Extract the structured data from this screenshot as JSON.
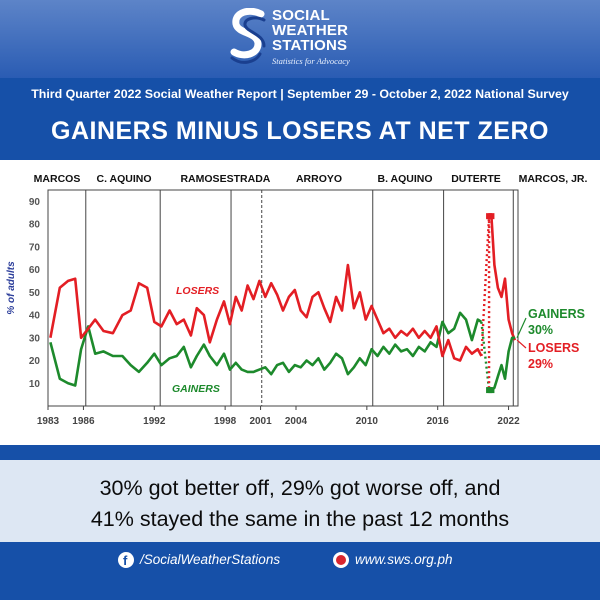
{
  "header": {
    "org_name": [
      "SOCIAL",
      "WEATHER",
      "STATIONS"
    ],
    "tagline": "Statistics for Advocacy",
    "survey_line": "Third Quarter 2022 Social Weather Report  |  September 29 - October 2, 2022 National Survey",
    "headline": "GAINERS MINUS LOSERS AT NET ZERO"
  },
  "summary": {
    "line1": "30% got better off, 29% got worse off, and",
    "line2": "41% stayed the same in the past 12 months"
  },
  "footer": {
    "facebook": "/SocialWeatherStations",
    "website": "www.sws.org.ph"
  },
  "colors": {
    "losers": "#e31e24",
    "gainers": "#1d8a2c",
    "brand_blue": "#1650a8",
    "ylabel": "#2b3d9a"
  },
  "icons": [
    "logo-swirl-icon",
    "facebook-icon",
    "globe-icon"
  ],
  "chart_data": {
    "type": "line",
    "title": "",
    "xlabel": "",
    "ylabel": "% of adults",
    "xlim": [
      1983,
      2022.8
    ],
    "ylim": [
      0,
      95
    ],
    "yticks": [
      10,
      20,
      30,
      40,
      50,
      60,
      70,
      80,
      90
    ],
    "xticks": [
      1983,
      1986,
      1992,
      1998,
      2001,
      2004,
      2010,
      2016,
      2022
    ],
    "grid": false,
    "legend": "inline labels",
    "administrations": [
      {
        "label": "MARCOS",
        "start": 1983
      },
      {
        "label": "C. AQUINO",
        "start": 1986.2
      },
      {
        "label": "RAMOS",
        "start": 1992.5
      },
      {
        "label": "ESTRADA",
        "start": 1998.5
      },
      {
        "label": "ARROYO",
        "start": 2001.1
      },
      {
        "label": "B. AQUINO",
        "start": 2010.5
      },
      {
        "label": "DUTERTE",
        "start": 2016.5
      },
      {
        "label": "MARCOS, JR.",
        "start": 2022.4
      }
    ],
    "series": [
      {
        "name": "LOSERS",
        "line_label": "LOSERS",
        "end_label": "LOSERS",
        "end_value_label": "29%",
        "x": [
          1983.2,
          1984,
          1984.7,
          1985.3,
          1985.8,
          1986.4,
          1987,
          1987.7,
          1988.5,
          1989.3,
          1990,
          1990.7,
          1991.4,
          1992,
          1992.6,
          1993.3,
          1993.9,
          1994.5,
          1995.1,
          1995.6,
          1996.2,
          1996.7,
          1997.3,
          1997.9,
          1998.4,
          1998.9,
          1999.4,
          1999.9,
          2000.4,
          2000.9,
          2001.4,
          2001.9,
          2002.4,
          2002.9,
          2003.4,
          2003.9,
          2004.4,
          2004.9,
          2005.4,
          2005.9,
          2006.4,
          2006.9,
          2007.4,
          2007.9,
          2008.4,
          2008.9,
          2009.4,
          2009.9,
          2010.4,
          2010.9,
          2011.4,
          2011.9,
          2012.4,
          2012.9,
          2013.4,
          2013.9,
          2014.4,
          2014.9,
          2015.4,
          2015.9,
          2016.4,
          2016.9,
          2017.4,
          2017.9,
          2018.4,
          2018.9,
          2019.4,
          2019.7
        ],
        "values": [
          30,
          52,
          55,
          56,
          30,
          34,
          38,
          33,
          32,
          40,
          42,
          54,
          52,
          37,
          35,
          42,
          36,
          38,
          31,
          43,
          40,
          28,
          38,
          46,
          36,
          48,
          42,
          53,
          47,
          55,
          48,
          54,
          49,
          42,
          48,
          51,
          42,
          39,
          48,
          50,
          43,
          37,
          48,
          42,
          62,
          43,
          50,
          38,
          44,
          38,
          32,
          34,
          30,
          33,
          31,
          34,
          30,
          33,
          30,
          35,
          22,
          29,
          21,
          20,
          26,
          23,
          25,
          22
        ]
      },
      {
        "name": "GAINERS",
        "line_label": "GAINERS",
        "end_label": "GAINERS",
        "end_value_label": "30%",
        "x": [
          1983.2,
          1984,
          1984.7,
          1985.3,
          1985.8,
          1986.4,
          1987,
          1987.7,
          1988.5,
          1989.3,
          1990,
          1990.7,
          1991.4,
          1992,
          1992.6,
          1993.3,
          1993.9,
          1994.5,
          1995.1,
          1995.6,
          1996.2,
          1996.7,
          1997.3,
          1997.9,
          1998.4,
          1998.9,
          1999.4,
          1999.9,
          2000.4,
          2000.9,
          2001.4,
          2001.9,
          2002.4,
          2002.9,
          2003.4,
          2003.9,
          2004.4,
          2004.9,
          2005.4,
          2005.9,
          2006.4,
          2006.9,
          2007.4,
          2007.9,
          2008.4,
          2008.9,
          2009.4,
          2009.9,
          2010.4,
          2010.9,
          2011.4,
          2011.9,
          2012.4,
          2012.9,
          2013.4,
          2013.9,
          2014.4,
          2014.9,
          2015.4,
          2015.9,
          2016.4,
          2016.9,
          2017.4,
          2017.9,
          2018.4,
          2018.9,
          2019.4,
          2019.7
        ],
        "values": [
          28,
          12,
          10,
          9,
          25,
          35,
          23,
          24,
          22,
          22,
          18,
          15,
          19,
          23,
          18,
          21,
          22,
          26,
          17,
          22,
          27,
          22,
          18,
          23,
          16,
          19,
          16,
          15,
          15,
          16,
          17,
          14,
          18,
          19,
          15,
          18,
          17,
          20,
          18,
          21,
          16,
          19,
          23,
          21,
          14,
          17,
          21,
          18,
          25,
          22,
          26,
          23,
          27,
          24,
          25,
          22,
          26,
          24,
          28,
          26,
          37,
          32,
          34,
          41,
          38,
          29,
          38,
          37
        ]
      }
    ],
    "pandemic_points": {
      "losers": [
        {
          "x": 2020.35,
          "y": 83.5
        },
        {
          "x": 2020.55,
          "y": 83.5
        }
      ],
      "gainers": [
        {
          "x": 2020.35,
          "y": 7
        },
        {
          "x": 2020.55,
          "y": 7
        }
      ],
      "losers_after": {
        "x": [
          2020.55,
          2020.8,
          2021.1,
          2021.4,
          2021.7,
          2022.0,
          2022.3,
          2022.55
        ],
        "values": [
          83.5,
          62,
          52,
          48,
          56,
          38,
          32,
          29
        ]
      },
      "gainers_after": {
        "x": [
          2020.55,
          2020.8,
          2021.1,
          2021.4,
          2021.7,
          2022.0,
          2022.3,
          2022.55
        ],
        "values": [
          7,
          8,
          13,
          18,
          12,
          24,
          30,
          30
        ]
      }
    }
  }
}
